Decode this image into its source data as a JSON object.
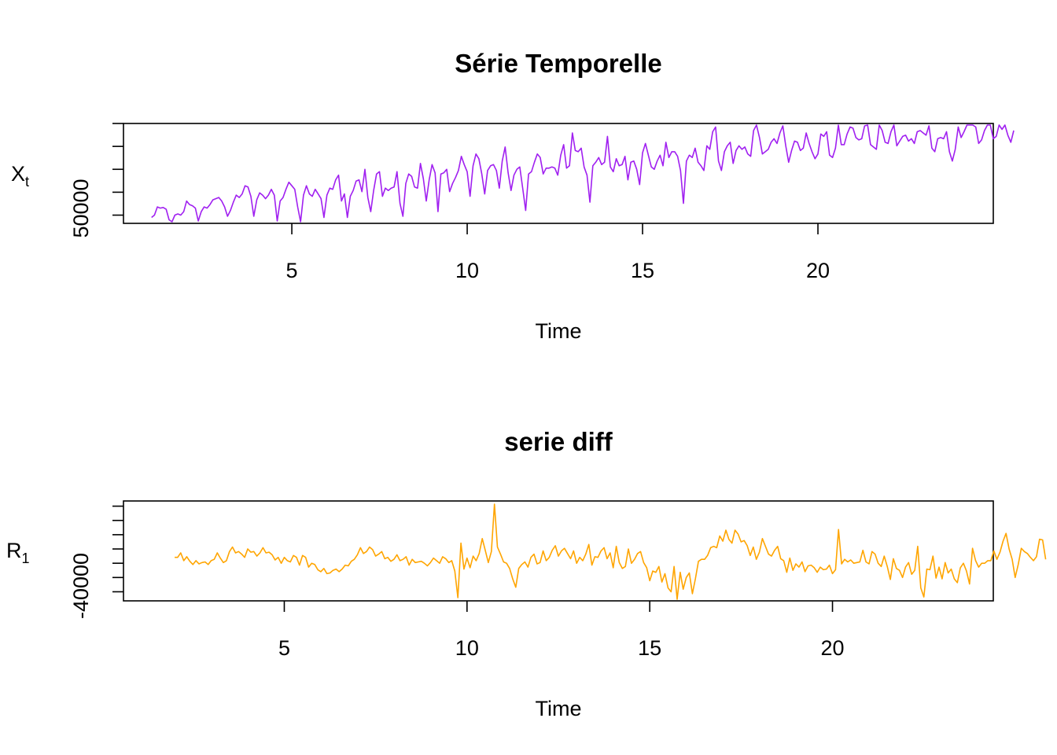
{
  "chart_data": [
    {
      "type": "line",
      "title": "Série Temporelle",
      "xlabel": "Time",
      "ylabel": {
        "main": "X",
        "subscript": "t"
      },
      "xlim": [
        0.2,
        25.0
      ],
      "ylim": [
        43000,
        128000
      ],
      "xticks": [
        5,
        10,
        15,
        20
      ],
      "xtick_labels": [
        "5",
        "10",
        "15",
        "20"
      ],
      "yticks": [
        50000,
        69500,
        89000,
        108500,
        128000
      ],
      "ytick_labels": [
        "50000"
      ],
      "color": "#A020F0",
      "frequency": 12,
      "start": 1.0,
      "series": [
        {
          "x_start": 1.0,
          "step": 0.08333,
          "values": [
            48000,
            50000,
            57000,
            56000,
            56500,
            55000,
            46000,
            43000,
            50000,
            51000,
            50000,
            53000,
            62000,
            59000,
            58000,
            56000,
            45000,
            53000,
            57000,
            56000,
            59000,
            63000,
            64000,
            65000,
            62000,
            57000,
            49000,
            54000,
            61000,
            67000,
            65000,
            68000,
            75000,
            74000,
            66000,
            49000,
            63000,
            69000,
            67000,
            64000,
            67000,
            72000,
            67000,
            45000,
            62000,
            65000,
            72000,
            78000,
            75000,
            72000,
            57000,
            44000,
            67000,
            75000,
            68000,
            66000,
            72000,
            68000,
            64000,
            48000,
            67000,
            73000,
            72000,
            80000,
            84000,
            62000,
            68000,
            48000,
            66000,
            71000,
            79000,
            80000,
            70000,
            89000,
            65000,
            53000,
            71000,
            85000,
            87000,
            66000,
            73000,
            71000,
            73000,
            74000,
            87000,
            60000,
            49000,
            77000,
            85000,
            83000,
            74000,
            73000,
            94000,
            81000,
            62000,
            80000,
            93000,
            86000,
            53000,
            85000,
            86000,
            89000,
            70000,
            77000,
            82000,
            88000,
            100000,
            93000,
            87000,
            66000,
            92000,
            102000,
            98000,
            85000,
            68000,
            88000,
            92000,
            93000,
            88000,
            73000,
            96000,
            108000,
            86000,
            71000,
            84000,
            89000,
            91000,
            73000,
            54000,
            85000,
            87000,
            95000,
            102000,
            99000,
            85000,
            90000,
            90000,
            91000,
            90000,
            84000,
            101000,
            110000,
            90000,
            92000,
            120000,
            105000,
            104000,
            107000,
            91000,
            84000,
            61000,
            92000,
            95000,
            99000,
            93000,
            95000,
            117000,
            91000,
            87000,
            98000,
            92000,
            93000,
            100000,
            80000,
            95000,
            96000,
            89000,
            76000,
            103000,
            111000,
            101000,
            91000,
            89000,
            96000,
            101000,
            92000,
            112000,
            99000,
            104000,
            104000,
            100000,
            88000,
            60000,
            96000,
            101000,
            99000,
            107000,
            95000,
            92000,
            88000,
            109000,
            106000,
            121000,
            125000,
            96000,
            88000,
            104000,
            109000,
            112000,
            94000,
            105000,
            109000,
            106000,
            108000,
            102000,
            100000,
            122000,
            128000,
            116000,
            102000,
            104000,
            106000,
            112000,
            115000,
            111000,
            120000,
            126000,
            109000,
            95000,
            105000,
            113000,
            112000,
            105000,
            107000,
            120000,
            111000,
            104000,
            98000,
            102000,
            119000,
            117000,
            121000,
            101000,
            99000,
            107000,
            127000,
            110000,
            110000,
            119000,
            125000,
            124000,
            116000,
            114000,
            115000,
            126000,
            130000,
            110000,
            108000,
            106000,
            131000,
            122000,
            112000,
            111000,
            121000,
            140000,
            109000,
            113000,
            117000,
            118000,
            113000,
            115000,
            111000,
            121000,
            122000,
            120000,
            118000,
            126000,
            107000,
            104000,
            115000,
            116000,
            115000,
            121000,
            104000,
            96000,
            106000,
            125000,
            116000,
            121000,
            129000,
            146000,
            131000,
            125000,
            111000,
            114000,
            122000,
            133000,
            134000,
            115000,
            117000,
            129000,
            123000,
            128000,
            118000,
            112000,
            122000
          ]
        }
      ]
    },
    {
      "type": "line",
      "title": "serie diff",
      "xlabel": "Time",
      "ylabel": {
        "main": "R",
        "subscript": "1"
      },
      "xlim": [
        0.6,
        24.4
      ],
      "ylim": [
        -54000,
        100000
      ],
      "xticks": [
        5,
        10,
        15,
        20
      ],
      "xtick_labels": [
        "5",
        "10",
        "15",
        "20"
      ],
      "yticks": [
        -40000,
        -18000,
        4000,
        26000,
        48000,
        70000,
        92000
      ],
      "ytick_labels": [
        "-40000"
      ],
      "color": "#FFA500",
      "frequency": 12,
      "start": 2.0,
      "series": [
        {
          "x_start": 2.0,
          "step": 0.08333,
          "values": [
            13000,
            13000,
            20000,
            8000,
            14000,
            7000,
            2000,
            8000,
            3000,
            5000,
            6000,
            2000,
            8000,
            10000,
            20000,
            12000,
            5000,
            8000,
            22000,
            29000,
            20000,
            22000,
            18000,
            13000,
            26000,
            21000,
            22000,
            15000,
            20000,
            28000,
            20000,
            21000,
            17000,
            9000,
            13000,
            4000,
            13000,
            8000,
            6000,
            16000,
            13000,
            1000,
            16000,
            13000,
            -2000,
            4000,
            2000,
            -6000,
            -9000,
            -4000,
            -12000,
            -11000,
            -7000,
            -5000,
            -9000,
            -5000,
            1000,
            0,
            7000,
            10000,
            17000,
            28000,
            19000,
            22000,
            29000,
            25000,
            15000,
            18000,
            22000,
            11000,
            13000,
            7000,
            10000,
            17000,
            8000,
            10000,
            14000,
            1000,
            10000,
            5000,
            6000,
            7000,
            4000,
            0,
            5000,
            12000,
            8000,
            4000,
            14000,
            11000,
            5000,
            8000,
            -8000,
            -49000,
            35000,
            -5000,
            12000,
            -3000,
            15000,
            8000,
            19000,
            42000,
            24000,
            5000,
            22000,
            95000,
            29000,
            18000,
            6000,
            4000,
            -4000,
            -20000,
            -33000,
            -4000,
            2000,
            6000,
            -2000,
            13000,
            18000,
            3000,
            5000,
            23000,
            8000,
            13000,
            24000,
            31000,
            15000,
            23000,
            27000,
            19000,
            11000,
            23000,
            4000,
            13000,
            8000,
            18000,
            33000,
            1000,
            14000,
            13000,
            23000,
            28000,
            11000,
            20000,
            -3000,
            30000,
            5000,
            -4000,
            -1000,
            26000,
            4000,
            10000,
            19000,
            22000,
            5000,
            -3000,
            -23000,
            -8000,
            -10000,
            -1000,
            -25000,
            -12000,
            -34000,
            -40000,
            -1000,
            -53000,
            -10000,
            -36000,
            -18000,
            -11000,
            -43000,
            -20000,
            7000,
            10000,
            10000,
            16000,
            28000,
            30000,
            28000,
            46000,
            38000,
            55000,
            41000,
            35000,
            55000,
            49000,
            37000,
            39000,
            31000,
            16000,
            29000,
            10000,
            21000,
            42000,
            30000,
            18000,
            15000,
            24000,
            30000,
            11000,
            8000,
            -10000,
            12000,
            -7000,
            3000,
            -2000,
            6000,
            -9000,
            0,
            1000,
            -3000,
            -10000,
            -2000,
            -6000,
            -5000,
            1000,
            -12000,
            -6000,
            56000,
            3000,
            10000,
            6000,
            9000,
            4000,
            5000,
            6000,
            24000,
            6000,
            3000,
            22000,
            18000,
            4000,
            -1000,
            15000,
            -1000,
            -21000,
            11000,
            -4000,
            -7000,
            -18000,
            -2000,
            5000,
            -13000,
            -7000,
            30000,
            -34000,
            -48000,
            -5000,
            -6000,
            15000,
            -19000,
            -2000,
            -20000,
            5000,
            -11000,
            -5000,
            -20000,
            -26000,
            -3000,
            4000,
            -8000,
            -28000,
            27000,
            8000,
            -2000,
            4000,
            4000,
            8000,
            8000,
            23000,
            10000,
            21000,
            38000,
            50000,
            26000,
            10000,
            -18000,
            2000,
            27000,
            22000,
            19000,
            13000,
            8000,
            14000,
            41000,
            40000,
            10000
          ]
        }
      ]
    }
  ]
}
